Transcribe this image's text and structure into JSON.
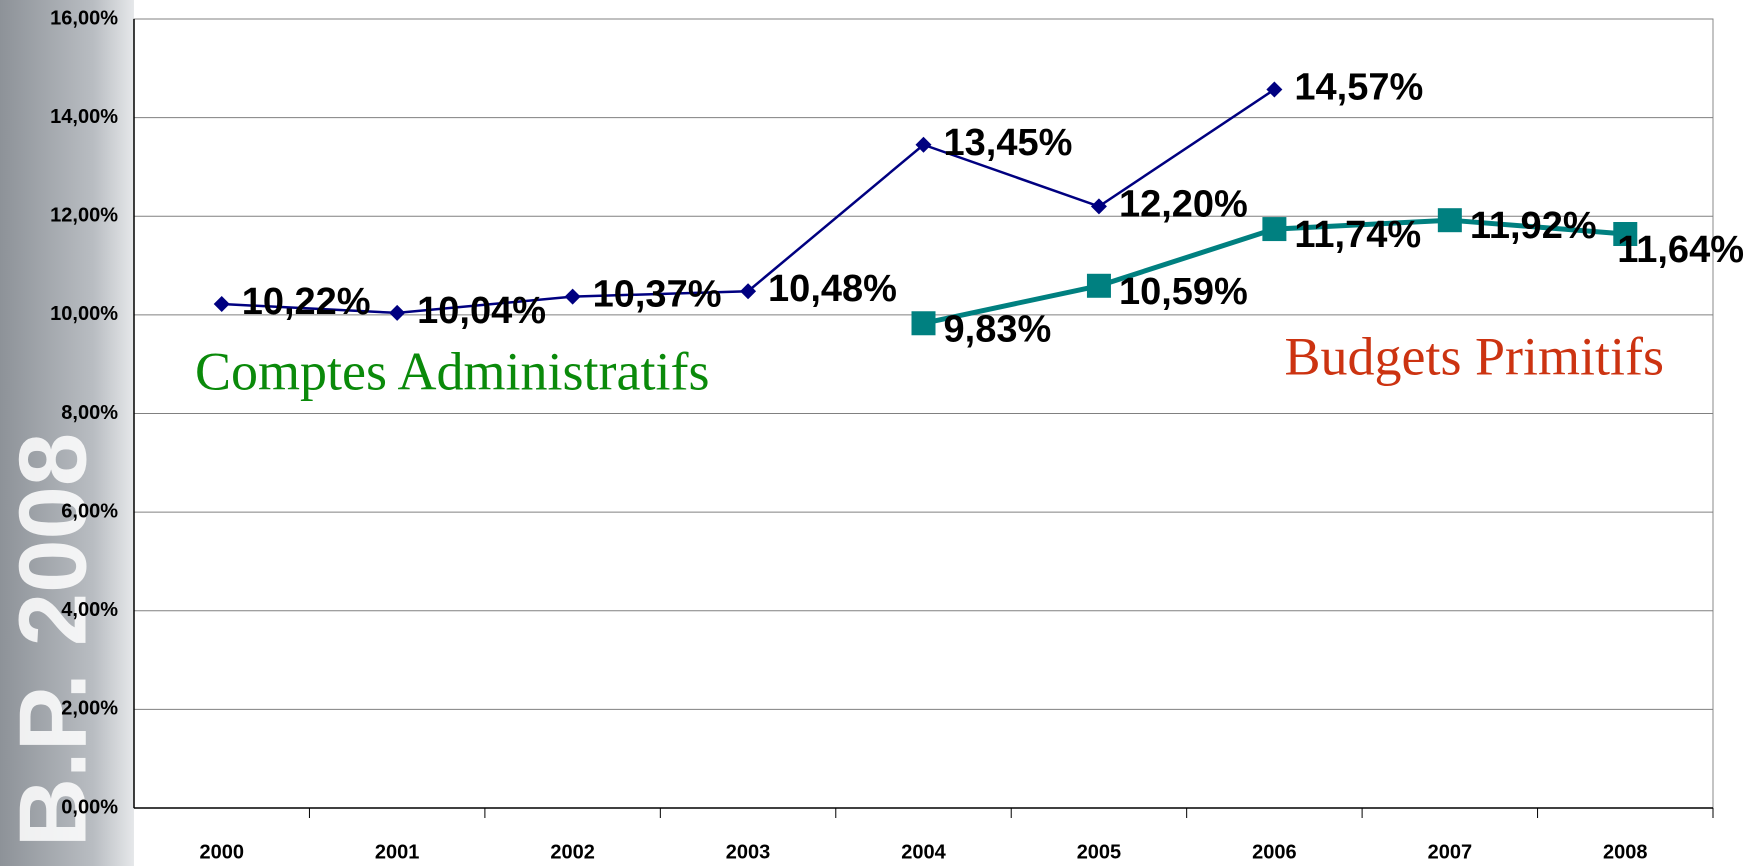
{
  "chart_data": {
    "type": "line",
    "background_text": "B.P. 2008",
    "categories": [
      "2000",
      "2001",
      "2002",
      "2003",
      "2004",
      "2005",
      "2006",
      "2007",
      "2008"
    ],
    "series": [
      {
        "name": "Comptes Administratifs",
        "color": "#000080",
        "name_color": "#0a8a0a",
        "marker": "diamond",
        "values": [
          10.22,
          10.04,
          10.37,
          10.48,
          13.45,
          12.2,
          14.57,
          null,
          null
        ],
        "value_labels": [
          "10,22%",
          "10,04%",
          "10,37%",
          "10,48%",
          "13,45%",
          "12,20%",
          "14,57%",
          null,
          null
        ]
      },
      {
        "name": "Budgets Primitifs",
        "color": "#008080",
        "name_color": "#cc3311",
        "marker": "square",
        "values": [
          null,
          null,
          null,
          null,
          9.83,
          10.59,
          11.74,
          11.92,
          11.64
        ],
        "value_labels": [
          null,
          null,
          null,
          null,
          "9,83%",
          "10,59%",
          "11,74%",
          "11,92%",
          "11,64%"
        ]
      }
    ],
    "ylim": [
      0,
      16
    ],
    "yticks": [
      {
        "value": 0,
        "label": "0,00%"
      },
      {
        "value": 2,
        "label": "2,00%"
      },
      {
        "value": 4,
        "label": "4,00%"
      },
      {
        "value": 6,
        "label": "6,00%"
      },
      {
        "value": 8,
        "label": "8,00%"
      },
      {
        "value": 10,
        "label": "10,00%"
      },
      {
        "value": 12,
        "label": "12,00%"
      },
      {
        "value": 14,
        "label": "14,00%"
      },
      {
        "value": 16,
        "label": "16,00%"
      }
    ],
    "grid": true
  }
}
